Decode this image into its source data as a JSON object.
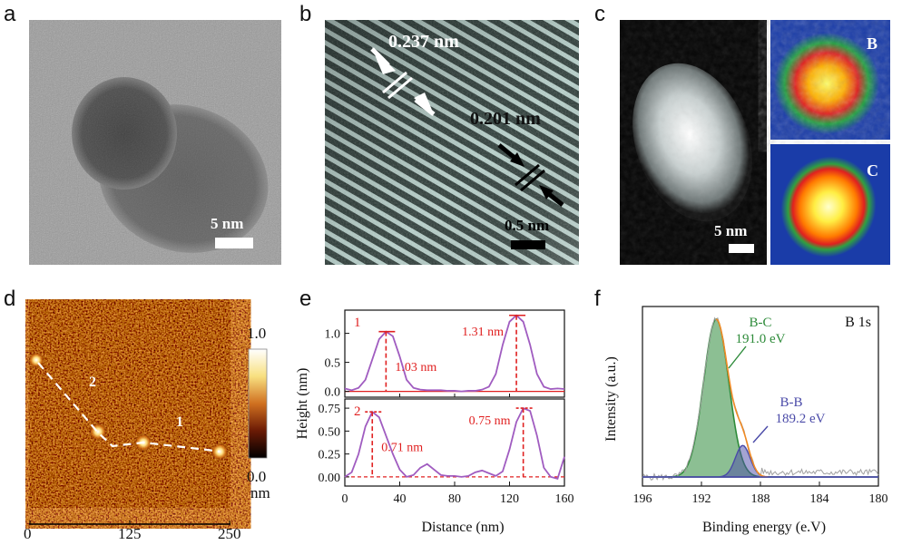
{
  "panels": {
    "a": {
      "label": "a",
      "scalebar": "5 nm"
    },
    "b": {
      "label": "b",
      "spacing_1": "0.237 nm",
      "spacing_2": "0.201 nm",
      "scalebar": "0.5 nm"
    },
    "c": {
      "label": "c",
      "scalebar": "5 nm",
      "map_1": "B",
      "map_2": "C"
    },
    "d": {
      "label": "d",
      "x_ticks": [
        "0",
        "125",
        "250"
      ],
      "line_1": "1",
      "line_2": "2",
      "colorbar_max": "1.0",
      "colorbar_min": "0.0",
      "colorbar_unit": "nm"
    }
  },
  "chart_data": [
    {
      "panel": "e",
      "type": "line",
      "label": "e",
      "xlabel": "Distance (nm)",
      "ylabel": "Height (nm)",
      "xlim": [
        0,
        160
      ],
      "x_ticks": [
        "0",
        "40",
        "80",
        "120",
        "160"
      ],
      "subplots": [
        {
          "name": "1",
          "ylim": [
            -0.1,
            1.4
          ],
          "y_ticks": [
            "0.0",
            "0.5",
            "1.0"
          ],
          "x": [
            0,
            5,
            10,
            15,
            20,
            25,
            30,
            35,
            40,
            45,
            50,
            55,
            60,
            65,
            70,
            75,
            80,
            85,
            90,
            95,
            100,
            105,
            110,
            115,
            120,
            125,
            130,
            135,
            140,
            145,
            150,
            155,
            160
          ],
          "y": [
            0.05,
            0.02,
            0.06,
            0.2,
            0.55,
            0.9,
            1.03,
            0.95,
            0.6,
            0.2,
            0.06,
            0.03,
            0.02,
            0.02,
            0.02,
            0.01,
            0.01,
            0.0,
            0.01,
            0.01,
            0.03,
            0.08,
            0.3,
            0.8,
            1.2,
            1.31,
            1.2,
            0.8,
            0.3,
            0.08,
            0.04,
            0.05,
            0.04
          ],
          "annotations": [
            "1.03 nm",
            "1.31 nm"
          ]
        },
        {
          "name": "2",
          "ylim": [
            -0.1,
            0.85
          ],
          "y_ticks": [
            "0.00",
            "0.25",
            "0.50",
            "0.75"
          ],
          "x": [
            0,
            5,
            10,
            15,
            20,
            25,
            30,
            35,
            40,
            45,
            50,
            55,
            60,
            65,
            70,
            75,
            80,
            85,
            90,
            95,
            100,
            105,
            110,
            115,
            120,
            125,
            130,
            135,
            140,
            145,
            150,
            155,
            160
          ],
          "y": [
            0.0,
            0.05,
            0.25,
            0.55,
            0.71,
            0.65,
            0.45,
            0.25,
            0.08,
            0.0,
            0.02,
            0.1,
            0.14,
            0.08,
            0.02,
            0.01,
            0.01,
            0.0,
            0.01,
            0.05,
            0.07,
            0.04,
            0.01,
            0.06,
            0.3,
            0.6,
            0.75,
            0.72,
            0.45,
            0.1,
            0.0,
            -0.02,
            0.22
          ],
          "annotations": [
            "0.71 nm",
            "0.75 nm"
          ]
        }
      ]
    },
    {
      "panel": "f",
      "type": "line",
      "label": "f",
      "title": "B 1s",
      "xlabel": "Binding energy (e.V)",
      "ylabel": "Intensity (a.u.)",
      "xlim": [
        196,
        180
      ],
      "x_ticks": [
        "196",
        "192",
        "188",
        "184",
        "180"
      ],
      "series": [
        {
          "name": "B-C",
          "peak": 191.0,
          "annotation": "191.0 eV",
          "color": "#2e8b3a"
        },
        {
          "name": "B-B",
          "peak": 189.2,
          "annotation": "189.2 eV",
          "color": "#4a4aa8"
        }
      ],
      "colors": {
        "envelope": "#f08a24",
        "raw": "#a0a0a0",
        "baseline": "#4a4aa8"
      }
    }
  ]
}
